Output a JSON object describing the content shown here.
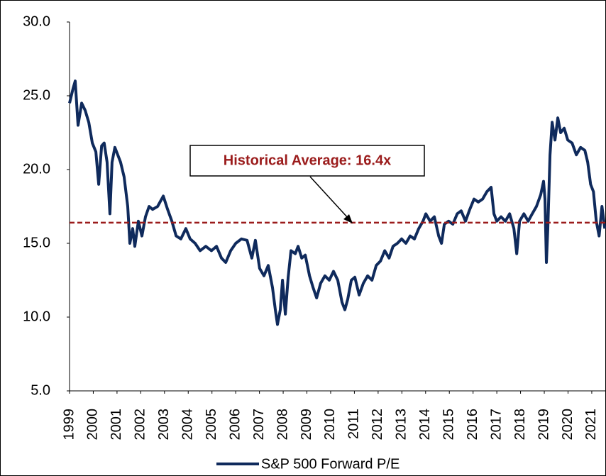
{
  "chart_data": {
    "type": "line",
    "x": [
      1999.0,
      1999.15,
      1999.24,
      1999.36,
      1999.51,
      1999.66,
      1999.81,
      1999.96,
      2000.11,
      2000.23,
      2000.35,
      2000.46,
      2000.58,
      2000.7,
      2000.79,
      2000.91,
      2001.03,
      2001.15,
      2001.3,
      2001.45,
      2001.54,
      2001.66,
      2001.75,
      2001.9,
      2002.05,
      2002.2,
      2002.35,
      2002.5,
      2002.71,
      2002.95,
      2003.13,
      2003.31,
      2003.49,
      2003.69,
      2003.9,
      2004.08,
      2004.29,
      2004.5,
      2004.74,
      2004.98,
      2005.19,
      2005.4,
      2005.58,
      2005.79,
      2006.0,
      2006.24,
      2006.48,
      2006.68,
      2006.83,
      2007.01,
      2007.19,
      2007.37,
      2007.55,
      2007.67,
      2007.76,
      2007.88,
      2007.97,
      2008.09,
      2008.21,
      2008.33,
      2008.51,
      2008.63,
      2008.78,
      2008.93,
      2009.11,
      2009.26,
      2009.41,
      2009.58,
      2009.76,
      2009.94,
      2010.12,
      2010.3,
      2010.48,
      2010.6,
      2010.72,
      2010.87,
      2011.02,
      2011.2,
      2011.38,
      2011.56,
      2011.74,
      2011.92,
      2012.1,
      2012.28,
      2012.46,
      2012.63,
      2012.81,
      2012.99,
      2013.17,
      2013.35,
      2013.53,
      2013.71,
      2013.89,
      2014.01,
      2014.19,
      2014.37,
      2014.55,
      2014.67,
      2014.79,
      2014.97,
      2015.15,
      2015.33,
      2015.5,
      2015.68,
      2015.86,
      2016.04,
      2016.22,
      2016.4,
      2016.58,
      2016.76,
      2016.88,
      2017.0,
      2017.18,
      2017.36,
      2017.54,
      2017.72,
      2017.84,
      2017.96,
      2018.14,
      2018.32,
      2018.49,
      2018.67,
      2018.85,
      2018.97,
      2019.03,
      2019.09,
      2019.15,
      2019.24,
      2019.33,
      2019.45,
      2019.57,
      2019.69,
      2019.84,
      2019.99,
      2020.17,
      2020.35,
      2020.53,
      2020.71,
      2020.83,
      2020.95,
      2021.07,
      2021.19,
      2021.31,
      2021.43,
      2021.55
    ],
    "series": [
      {
        "name": "S&P 500 Forward P/E",
        "color": "#0f2a5c",
        "values": [
          24.5,
          25.5,
          26.0,
          23.0,
          24.5,
          24.0,
          23.2,
          21.8,
          21.2,
          19.0,
          21.6,
          21.8,
          20.5,
          17.0,
          20.5,
          21.5,
          21.0,
          20.5,
          19.5,
          17.5,
          15.0,
          16.0,
          14.8,
          16.5,
          15.5,
          16.8,
          17.5,
          17.3,
          17.5,
          18.2,
          17.3,
          16.5,
          15.5,
          15.3,
          16.0,
          15.3,
          15.0,
          14.5,
          14.8,
          14.5,
          14.8,
          14.0,
          13.7,
          14.5,
          15.0,
          15.3,
          15.2,
          14.0,
          15.2,
          13.3,
          12.8,
          13.5,
          12.0,
          10.5,
          9.5,
          10.5,
          12.5,
          10.2,
          12.7,
          14.5,
          14.3,
          14.8,
          14.0,
          14.2,
          12.8,
          12.0,
          11.3,
          12.3,
          12.8,
          12.5,
          13.1,
          12.5,
          11.0,
          10.5,
          11.2,
          12.5,
          12.7,
          11.5,
          12.3,
          12.8,
          12.5,
          13.5,
          13.8,
          14.5,
          14.0,
          14.8,
          15.0,
          15.3,
          15.0,
          15.5,
          15.3,
          16.0,
          16.5,
          17.0,
          16.5,
          16.8,
          15.5,
          15.0,
          16.3,
          16.5,
          16.3,
          17.0,
          17.2,
          16.5,
          17.3,
          18.0,
          17.8,
          18.0,
          18.5,
          18.8,
          17.0,
          16.5,
          16.8,
          16.5,
          17.0,
          16.0,
          14.3,
          16.5,
          17.0,
          16.5,
          17.0,
          17.5,
          18.3,
          19.2,
          18.0,
          13.7,
          16.0,
          21.0,
          23.2,
          22.0,
          23.5,
          22.5,
          22.8,
          22.0,
          21.8,
          21.0,
          21.5,
          21.3,
          20.5,
          19.0,
          18.5,
          16.5,
          15.5,
          17.5,
          16.0
        ]
      }
    ],
    "average": 16.4,
    "average_color": "#9b1c1c",
    "annotation": "Historical Average: 16.4x",
    "xlim": [
      1999,
      2021.6
    ],
    "xticks": [
      1999,
      2000,
      2001,
      2002,
      2003,
      2004,
      2005,
      2006,
      2007,
      2008,
      2009,
      2010,
      2011,
      2012,
      2013,
      2014,
      2015,
      2016,
      2017,
      2018,
      2019,
      2020,
      2021
    ],
    "ylim": [
      5,
      30
    ],
    "yticks": [
      {
        "value": 5,
        "label": "5.0"
      },
      {
        "value": 10,
        "label": "10.0"
      },
      {
        "value": 15,
        "label": "15.0"
      },
      {
        "value": 20,
        "label": "20.0"
      },
      {
        "value": 25,
        "label": "25.0"
      },
      {
        "value": 30,
        "label": "30.0"
      }
    ],
    "grid": false
  }
}
